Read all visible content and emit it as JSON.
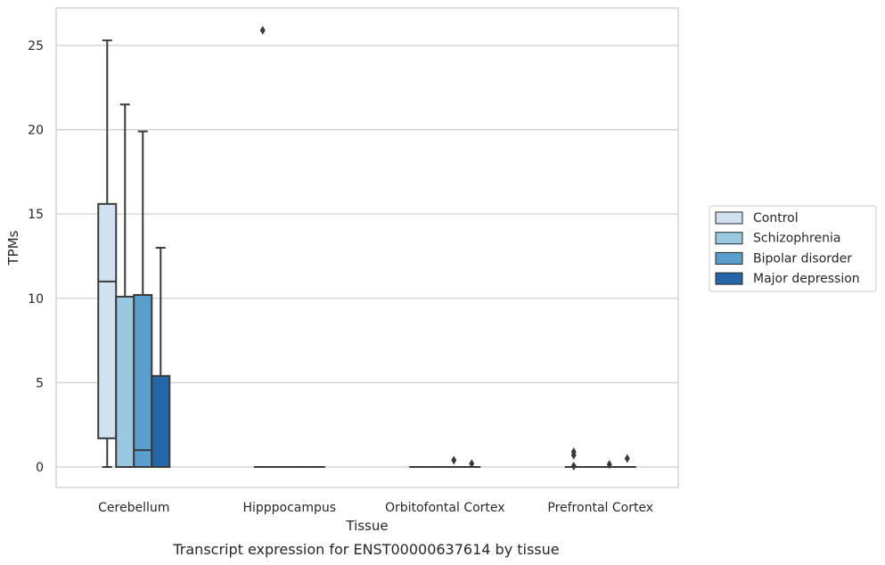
{
  "chart_data": {
    "type": "box",
    "title": "Transcript expression for ENST00000637614 by tissue",
    "xlabel": "Tissue",
    "ylabel": "TPMs",
    "ylim": [
      -1.3,
      27
    ],
    "yticks": [
      0,
      5,
      10,
      15,
      20,
      25
    ],
    "grid": true,
    "legend_position": "right",
    "categories": [
      "Cerebellum",
      "Hipppocampus",
      "Orbitofontal Cortex",
      "Prefrontal Cortex"
    ],
    "series": [
      {
        "name": "Control",
        "color": "#d0e1f2",
        "boxes": [
          {
            "q1": 1.7,
            "median": 11.0,
            "q3": 15.6,
            "whisker_low": 0,
            "whisker_high": 25.3,
            "outliers": []
          },
          {
            "q1": 0,
            "median": 0,
            "q3": 0,
            "whisker_low": 0,
            "whisker_high": 0,
            "outliers": [
              25.9
            ]
          },
          {
            "q1": 0,
            "median": 0,
            "q3": 0,
            "whisker_low": 0,
            "whisker_high": 0,
            "outliers": []
          },
          {
            "q1": 0,
            "median": 0,
            "q3": 0,
            "whisker_low": 0,
            "whisker_high": 0,
            "outliers": [
              0.05,
              0.7,
              0.9
            ]
          }
        ]
      },
      {
        "name": "Schizophrenia",
        "color": "#9ac8e0",
        "boxes": [
          {
            "q1": 0,
            "median": 0,
            "q3": 10.1,
            "whisker_low": 0,
            "whisker_high": 21.5,
            "outliers": []
          },
          {
            "q1": 0,
            "median": 0,
            "q3": 0,
            "whisker_low": 0,
            "whisker_high": 0,
            "outliers": []
          },
          {
            "q1": 0,
            "median": 0,
            "q3": 0,
            "whisker_low": 0,
            "whisker_high": 0,
            "outliers": []
          },
          {
            "q1": 0,
            "median": 0,
            "q3": 0,
            "whisker_low": 0,
            "whisker_high": 0,
            "outliers": []
          }
        ]
      },
      {
        "name": "Bipolar disorder",
        "color": "#5b9ecb",
        "boxes": [
          {
            "q1": 0,
            "median": 1.0,
            "q3": 10.2,
            "whisker_low": 0,
            "whisker_high": 19.9,
            "outliers": []
          },
          {
            "q1": 0,
            "median": 0,
            "q3": 0,
            "whisker_low": 0,
            "whisker_high": 0,
            "outliers": []
          },
          {
            "q1": 0,
            "median": 0,
            "q3": 0,
            "whisker_low": 0,
            "whisker_high": 0,
            "outliers": [
              0.4
            ]
          },
          {
            "q1": 0,
            "median": 0,
            "q3": 0,
            "whisker_low": 0,
            "whisker_high": 0,
            "outliers": [
              0.15
            ]
          }
        ]
      },
      {
        "name": "Major depression",
        "color": "#2565a8",
        "boxes": [
          {
            "q1": 0,
            "median": 0,
            "q3": 5.4,
            "whisker_low": 0,
            "whisker_high": 13.0,
            "outliers": []
          },
          {
            "q1": 0,
            "median": 0,
            "q3": 0,
            "whisker_low": 0,
            "whisker_high": 0,
            "outliers": []
          },
          {
            "q1": 0,
            "median": 0,
            "q3": 0,
            "whisker_low": 0,
            "whisker_high": 0,
            "outliers": [
              0.2
            ]
          },
          {
            "q1": 0,
            "median": 0,
            "q3": 0,
            "whisker_low": 0,
            "whisker_high": 0,
            "outliers": [
              0.5
            ]
          }
        ]
      }
    ]
  }
}
